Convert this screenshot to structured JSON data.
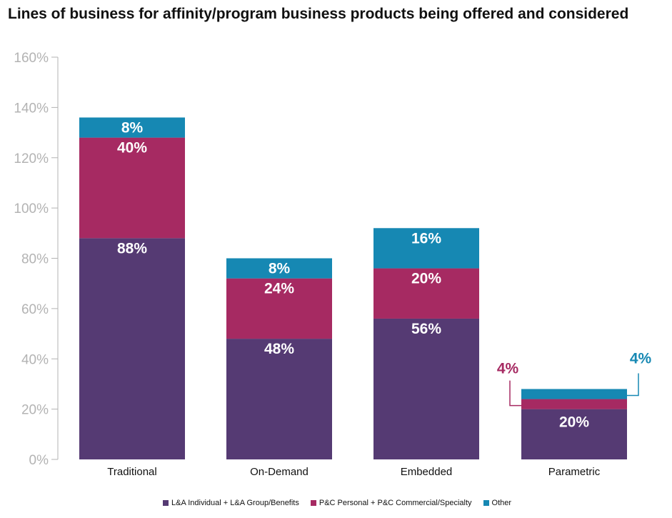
{
  "chart_data": {
    "type": "bar",
    "stacked": true,
    "title": "Lines of business for affinity/program business products being offered and considered",
    "categories": [
      "Traditional",
      "On-Demand",
      "Embedded",
      "Parametric"
    ],
    "series": [
      {
        "name": "L&A Individual + L&A Group/Benefits",
        "color": "#553a73",
        "values": [
          88,
          48,
          56,
          20
        ],
        "labels": [
          "88%",
          "48%",
          "56%",
          "20%"
        ]
      },
      {
        "name": "P&C Personal + P&C Commercial/Specialty",
        "color": "#a62a62",
        "values": [
          40,
          24,
          20,
          4
        ],
        "labels": [
          "40%",
          "24%",
          "20%",
          "4%"
        ]
      },
      {
        "name": "Other",
        "color": "#1688b3",
        "values": [
          8,
          8,
          16,
          4
        ],
        "labels": [
          "8%",
          "8%",
          "16%",
          "4%"
        ]
      }
    ],
    "ylim": [
      0,
      160
    ],
    "yticks": [
      0,
      20,
      40,
      60,
      80,
      100,
      120,
      140,
      160
    ],
    "ytick_labels": [
      "0%",
      "20%",
      "40%",
      "60%",
      "80%",
      "100%",
      "120%",
      "140%",
      "160%"
    ],
    "xlabel": "",
    "ylabel": "",
    "grid": false,
    "legend_position": "bottom"
  }
}
